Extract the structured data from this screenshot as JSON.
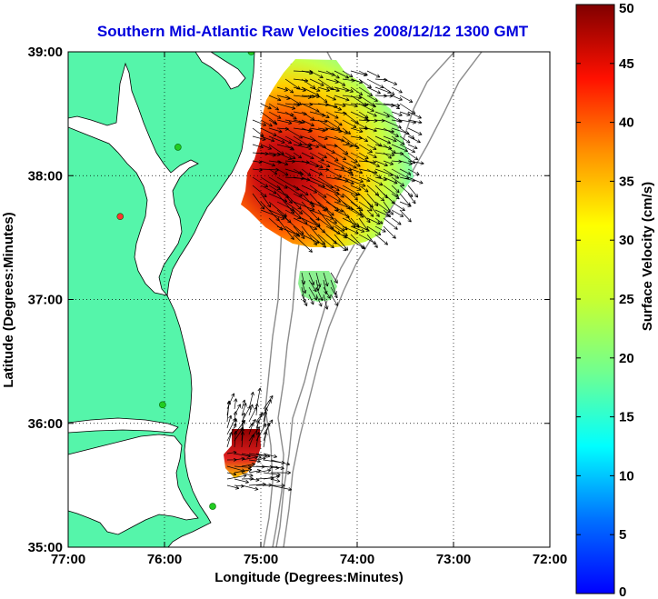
{
  "chart_data": {
    "type": "map",
    "title": "Southern Mid-Atlantic Raw Velocities 2008/12/12 1300 GMT",
    "xlabel": "Longitude (Degrees:Minutes)",
    "ylabel": "Latitude (Degrees:Minutes)",
    "xlim": [
      -77,
      -72
    ],
    "ylim": [
      35,
      39
    ],
    "x_ticks": [
      {
        "value": -77,
        "label": "77:00"
      },
      {
        "value": -76,
        "label": "76:00"
      },
      {
        "value": -75,
        "label": "75:00"
      },
      {
        "value": -74,
        "label": "74:00"
      },
      {
        "value": -73,
        "label": "73:00"
      },
      {
        "value": -72,
        "label": "72:00"
      }
    ],
    "y_ticks": [
      {
        "value": 35,
        "label": "35:00"
      },
      {
        "value": 36,
        "label": "36:00"
      },
      {
        "value": 37,
        "label": "37:00"
      },
      {
        "value": 38,
        "label": "38:00"
      },
      {
        "value": 39,
        "label": "39:00"
      }
    ],
    "grid": true,
    "colorbar": {
      "label": "Surface Velocity (cm/s)",
      "min": 0,
      "max": 50,
      "ticks": [
        "0",
        "5",
        "10",
        "15",
        "20",
        "25",
        "30",
        "35",
        "40",
        "45",
        "50"
      ]
    },
    "stations": [
      {
        "lon": -75.1,
        "lat": 39.0,
        "color": "#22cc22"
      },
      {
        "lon": -75.86,
        "lat": 38.23,
        "color": "#22cc22"
      },
      {
        "lon": -76.02,
        "lat": 36.15,
        "color": "#22cc22"
      },
      {
        "lon": -75.5,
        "lat": 35.33,
        "color": "#22cc22"
      },
      {
        "lon": -76.46,
        "lat": 37.67,
        "color": "#ff3333"
      }
    ],
    "velocity_regions": [
      {
        "name": "northern",
        "lon_range": [
          -75.3,
          -73.4
        ],
        "lat_range": [
          37.45,
          38.95
        ]
      },
      {
        "name": "middle",
        "lon_range": [
          -74.75,
          -74.35
        ],
        "lat_range": [
          36.9,
          37.3
        ]
      },
      {
        "name": "southern",
        "lon_range": [
          -75.35,
          -74.9
        ],
        "lat_range": [
          35.4,
          36.0
        ]
      }
    ],
    "colors": {
      "land": "#55f5aa",
      "ocean": "#ffffff",
      "bathymetry": "#8c8c8c",
      "title": "#0000dd"
    }
  }
}
